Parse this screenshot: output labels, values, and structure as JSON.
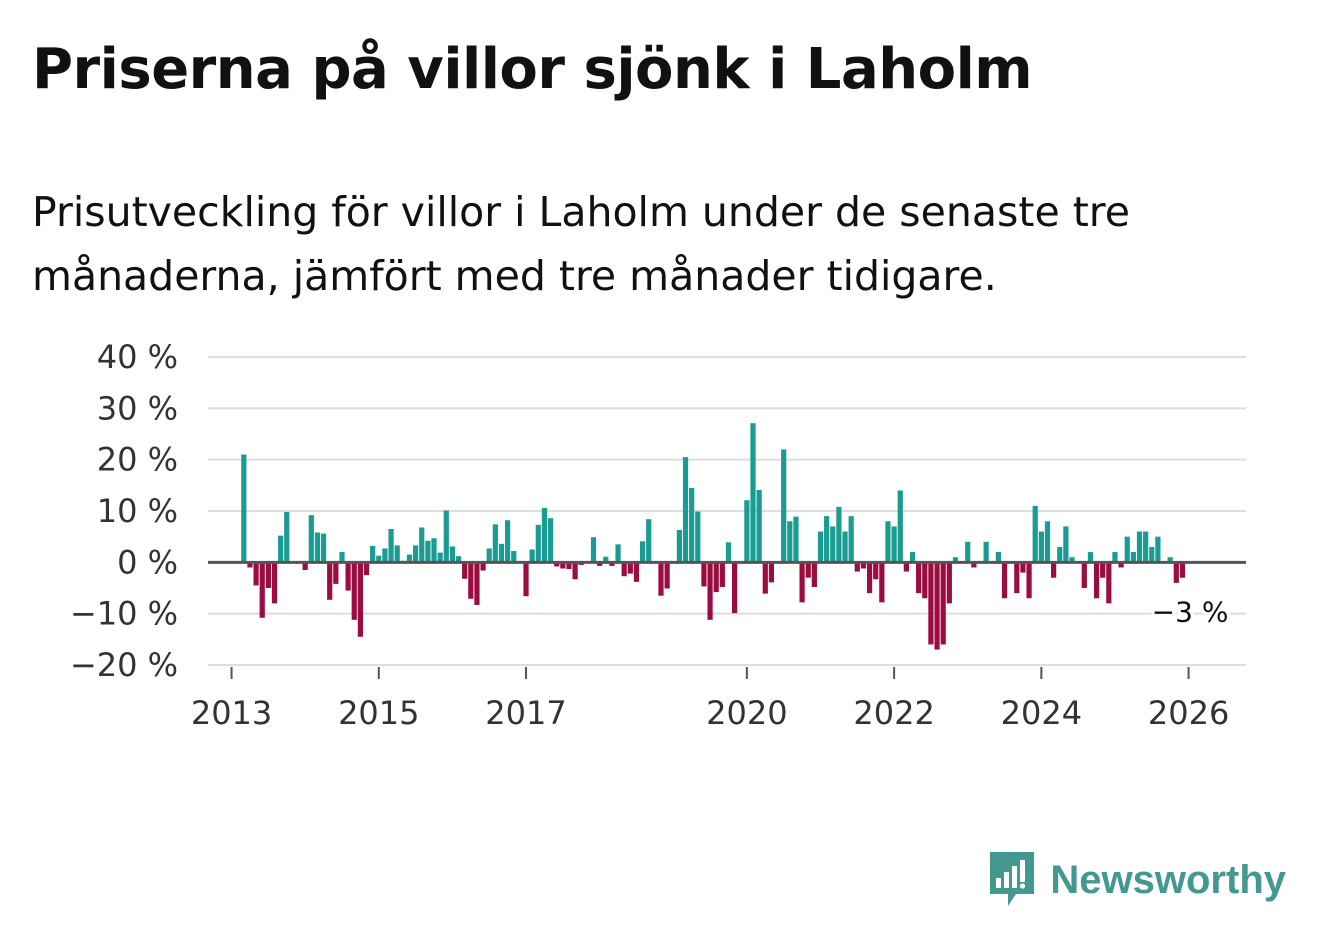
{
  "title": "Priserna på villor sjönk i Laholm",
  "subtitle": "Prisutveckling för villor i Laholm under de senaste tre månaderna, jämfört med tre månader tidigare.",
  "brand": "Newsworthy",
  "colors": {
    "positive": "#1a9c93",
    "negative": "#9b0d40",
    "zero_line": "#555555",
    "grid": "#dddddd",
    "brand": "#43998f"
  },
  "chart_data": {
    "type": "bar",
    "title": "Priserna på villor sjönk i Laholm",
    "xlabel": "",
    "ylabel": "",
    "ylim": [
      -20,
      40
    ],
    "y_ticks": [
      "40 %",
      "30 %",
      "20 %",
      "10 %",
      "0 %",
      "−10 %",
      "−20 %"
    ],
    "x_ticks": [
      "2013",
      "2015",
      "2017",
      "2020",
      "2022",
      "2024",
      "2026"
    ],
    "x_tick_years": [
      2013,
      2015,
      2017,
      2020,
      2022,
      2024,
      2026
    ],
    "x_domain_years": [
      2012.68,
      2026.78
    ],
    "start": "2013-03",
    "series": [
      {
        "name": "Prisutveckling (%)",
        "values": [
          21,
          -1,
          -4.5,
          -10.8,
          -5,
          -8,
          5.2,
          9.8,
          0,
          0,
          -1.5,
          9.2,
          5.8,
          5.6,
          -7.3,
          -4.2,
          2,
          -5.5,
          -11.2,
          -14.5,
          -2.5,
          3.2,
          1.3,
          2.7,
          6.5,
          3.3,
          0.3,
          1.5,
          3.3,
          6.8,
          4.2,
          4.7,
          1.9,
          10.1,
          3.1,
          1.2,
          -3.2,
          -7.1,
          -8.3,
          -1.6,
          2.7,
          7.4,
          3.6,
          8.2,
          2.2,
          0,
          -6.6,
          2.5,
          7.3,
          10.6,
          8.6,
          -0.8,
          -1.2,
          -1.3,
          -3.3,
          -0.5,
          0,
          4.9,
          -0.7,
          1.1,
          -0.7,
          3.5,
          -2.7,
          -2.2,
          -3.8,
          4.1,
          8.4,
          0,
          -6.5,
          -5.1,
          0,
          6.3,
          20.5,
          14.5,
          9.9,
          -4.7,
          -11.2,
          -5.8,
          -4.8,
          3.9,
          -9.9,
          0,
          12.1,
          27.1,
          14.1,
          -6.1,
          -3.9,
          0,
          22,
          8,
          8.9,
          -7.8,
          -3,
          -4.8,
          6,
          9,
          7,
          10.8,
          6,
          9,
          -1.8,
          -1.2,
          -6,
          -3.3,
          -7.8,
          8,
          7,
          14,
          -1.8,
          2,
          -6,
          -7,
          -16,
          -17,
          -16,
          -8,
          1,
          0,
          4,
          -1,
          0,
          4,
          0,
          2,
          -7,
          0,
          -6,
          -2,
          -7,
          11,
          6,
          8,
          -3,
          3,
          7,
          1,
          0,
          -5,
          2,
          -7,
          -3,
          -8,
          2,
          -1,
          5,
          2,
          6,
          6,
          3,
          5,
          0,
          1,
          -4,
          -3
        ]
      }
    ],
    "annotation": {
      "label": "−3 %",
      "value": -3
    }
  }
}
